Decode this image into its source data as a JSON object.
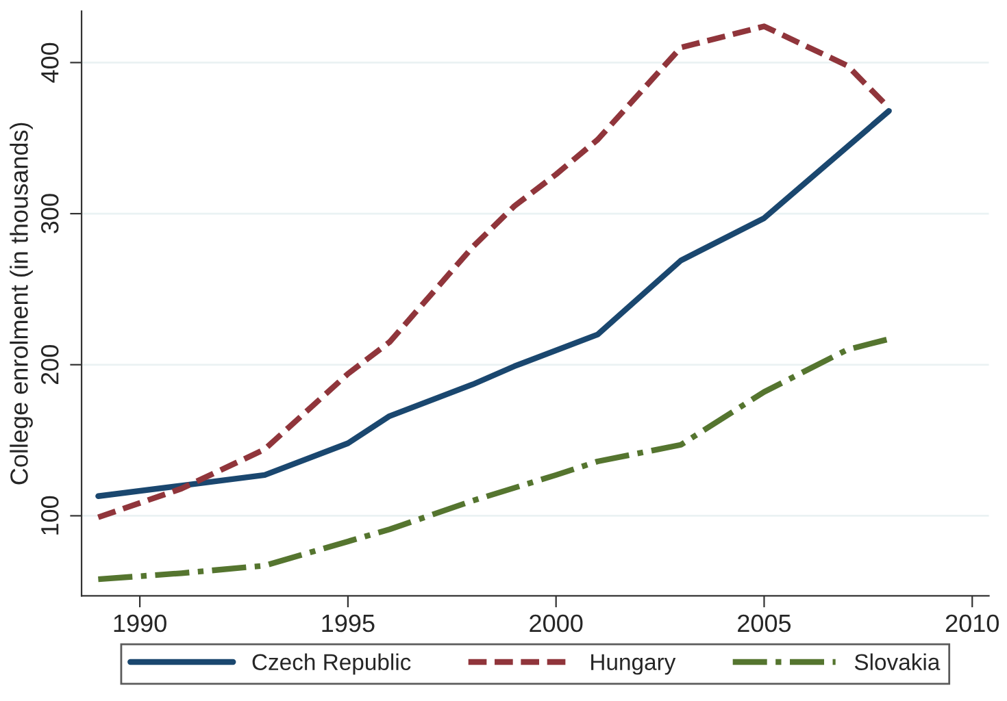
{
  "chart_data": {
    "type": "line",
    "ylabel": "College enrolment (in thousands)",
    "series": [
      {
        "name": "Czech Republic",
        "color": "#1a476f",
        "line_style": "solid",
        "x": [
          1989,
          1991,
          1993,
          1995,
          1996,
          1998,
          1999,
          2001,
          2003,
          2005,
          2008
        ],
        "values": [
          113,
          120,
          127,
          148,
          166,
          187,
          199,
          220,
          269,
          297,
          368
        ]
      },
      {
        "name": "Hungary",
        "color": "#90353b",
        "line_style": "dashed",
        "x": [
          1989,
          1991,
          1993,
          1995,
          1996,
          1998,
          1999,
          2000,
          2001,
          2003,
          2005,
          2007,
          2008
        ],
        "values": [
          99,
          118,
          144,
          194,
          215,
          278,
          305,
          326,
          349,
          410,
          424,
          398,
          370
        ]
      },
      {
        "name": "Slovakia",
        "color": "#55752f",
        "line_style": "dashdot",
        "x": [
          1989,
          1991,
          1993,
          1995,
          1996,
          1998,
          2000,
          2001,
          2003,
          2005,
          2007,
          2008
        ],
        "values": [
          58,
          62,
          67,
          83,
          91,
          110,
          127,
          136,
          147,
          182,
          210,
          217
        ]
      }
    ],
    "xlim": [
      1988.6,
      2010.4
    ],
    "ylim": [
      47,
      434
    ],
    "xticks": [
      1990,
      1995,
      2000,
      2005,
      2010
    ],
    "yticks": [
      100,
      200,
      300,
      400
    ],
    "grid": "y",
    "legend": "bottom"
  }
}
